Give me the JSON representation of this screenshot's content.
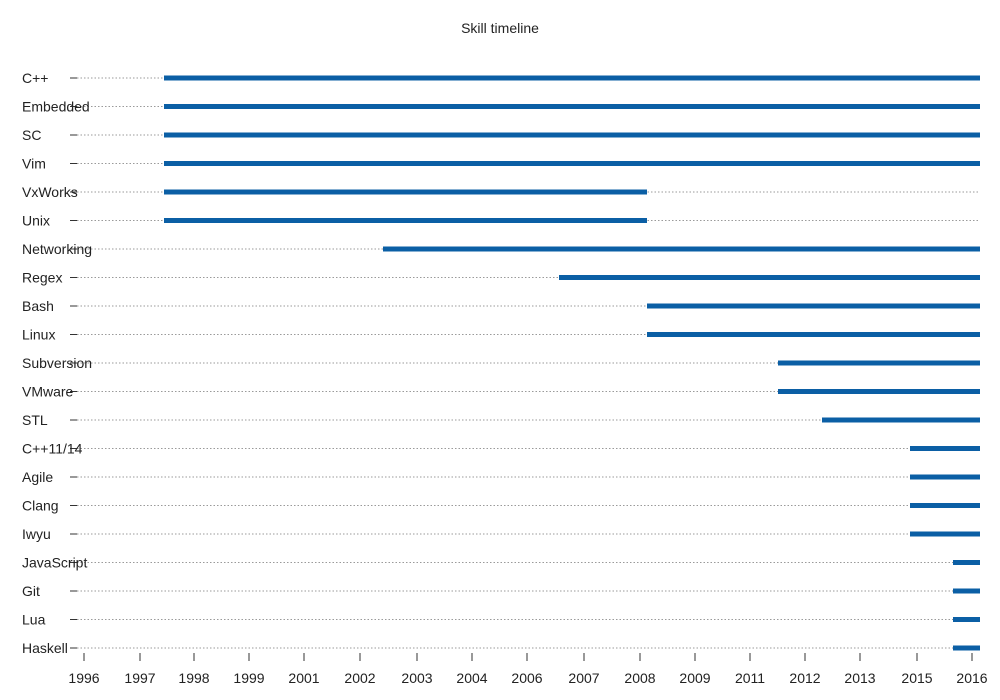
{
  "title": "Skill timeline",
  "chart_data": {
    "type": "bar",
    "subtype": "gantt-timeline",
    "title": "Skill timeline",
    "xlabel": "",
    "ylabel": "",
    "xlim": [
      1996,
      2016.2
    ],
    "x_ticks": [
      1996,
      1997,
      1998,
      1999,
      2001,
      2002,
      2003,
      2004,
      2006,
      2007,
      2008,
      2009,
      2011,
      2012,
      2013,
      2015,
      2016
    ],
    "grid": "horizontal dotted",
    "bar_color": "#0b5fa5",
    "skills": [
      {
        "name": "C++",
        "start": 1997.5,
        "end": 2016.2
      },
      {
        "name": "Embedded",
        "start": 1997.5,
        "end": 2016.2
      },
      {
        "name": "SC",
        "start": 1997.5,
        "end": 2016.2
      },
      {
        "name": "Vim",
        "start": 1997.5,
        "end": 2016.2
      },
      {
        "name": "VxWorks",
        "start": 1997.5,
        "end": 2008.2
      },
      {
        "name": "Unix",
        "start": 1997.5,
        "end": 2008.2
      },
      {
        "name": "Networking",
        "start": 2002.5,
        "end": 2016.2
      },
      {
        "name": "Regex",
        "start": 2006.5,
        "end": 2016.2
      },
      {
        "name": "Bash",
        "start": 2008.2,
        "end": 2016.2
      },
      {
        "name": "Linux",
        "start": 2008.2,
        "end": 2016.2
      },
      {
        "name": "Subversion",
        "start": 2011.7,
        "end": 2016.2
      },
      {
        "name": "VMware",
        "start": 2011.7,
        "end": 2016.2
      },
      {
        "name": "STL",
        "start": 2012.5,
        "end": 2016.2
      },
      {
        "name": "C++11/14",
        "start": 2014.9,
        "end": 2016.2
      },
      {
        "name": "Agile",
        "start": 2014.9,
        "end": 2016.2
      },
      {
        "name": "Clang",
        "start": 2014.9,
        "end": 2016.2
      },
      {
        "name": "Iwyu",
        "start": 2014.9,
        "end": 2016.2
      },
      {
        "name": "JavaScript",
        "start": 2015.7,
        "end": 2016.2
      },
      {
        "name": "Git",
        "start": 2015.7,
        "end": 2016.2
      },
      {
        "name": "Lua",
        "start": 2015.7,
        "end": 2016.2
      },
      {
        "name": "Haskell",
        "start": 2015.7,
        "end": 2016.2
      }
    ]
  }
}
